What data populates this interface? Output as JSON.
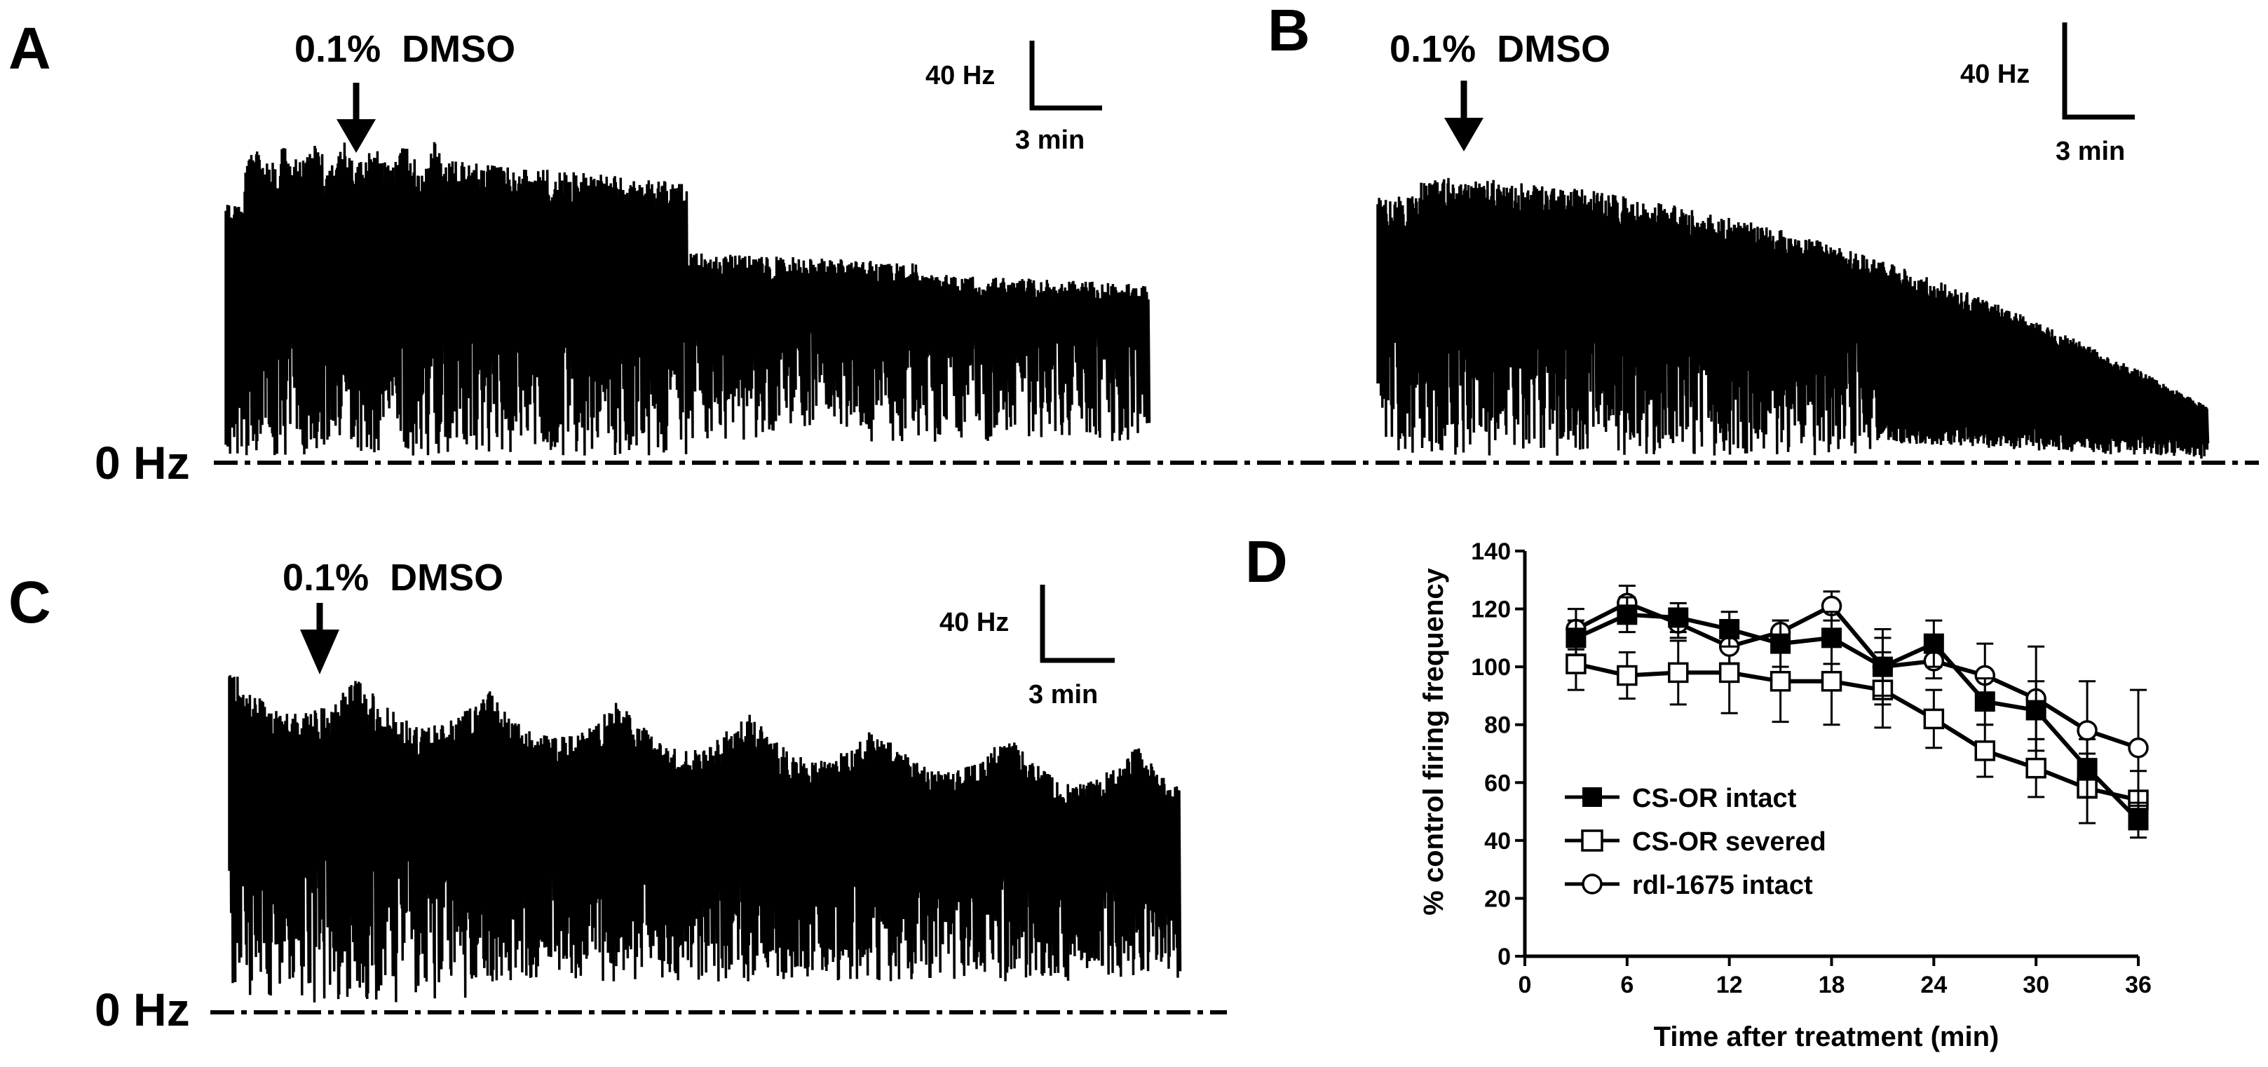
{
  "panels": [
    {
      "letter": "A",
      "label": "0.1%  DMSO",
      "scale_y": "40 Hz",
      "scale_x": "3 min",
      "zero": "0 Hz"
    },
    {
      "letter": "B",
      "label": "0.1%  DMSO",
      "scale_y": "40 Hz",
      "scale_x": "3 min",
      "zero": ""
    },
    {
      "letter": "C",
      "label": "0.1%  DMSO",
      "scale_y": "40 Hz",
      "scale_x": "3 min",
      "zero": "0 Hz"
    }
  ],
  "panel_d": {
    "letter": "D"
  },
  "chart_data": {
    "type": "line",
    "title": "",
    "xlabel": "Time after treatment (min)",
    "ylabel": "% control firing frequency",
    "x": [
      3,
      6,
      9,
      12,
      15,
      18,
      21,
      24,
      27,
      30,
      33,
      36
    ],
    "xticks": [
      0,
      6,
      12,
      18,
      24,
      30,
      36
    ],
    "yticks": [
      0,
      20,
      40,
      60,
      80,
      100,
      120,
      140
    ],
    "xlim": [
      0,
      36
    ],
    "ylim": [
      0,
      140
    ],
    "legend_position": "bottom-left",
    "series": [
      {
        "name": "CS-OR intact",
        "marker": "filled-square",
        "values": [
          110,
          118,
          117,
          113,
          108,
          110,
          100,
          108,
          88,
          85,
          65,
          47
        ],
        "errors": [
          6,
          6,
          5,
          6,
          8,
          9,
          10,
          8,
          8,
          10,
          10,
          6
        ]
      },
      {
        "name": "CS-OR severed",
        "marker": "open-square",
        "values": [
          101,
          97,
          98,
          98,
          95,
          95,
          92,
          82,
          71,
          65,
          58,
          54
        ],
        "errors": [
          9,
          8,
          11,
          14,
          14,
          15,
          13,
          10,
          9,
          10,
          12,
          10
        ]
      },
      {
        "name": "rdl-1675 intact",
        "marker": "open-circle",
        "values": [
          113,
          122,
          115,
          107,
          112,
          121,
          100,
          102,
          97,
          89,
          78,
          72
        ],
        "errors": [
          7,
          6,
          5,
          6,
          4,
          5,
          13,
          6,
          11,
          18,
          17,
          20
        ]
      }
    ]
  }
}
